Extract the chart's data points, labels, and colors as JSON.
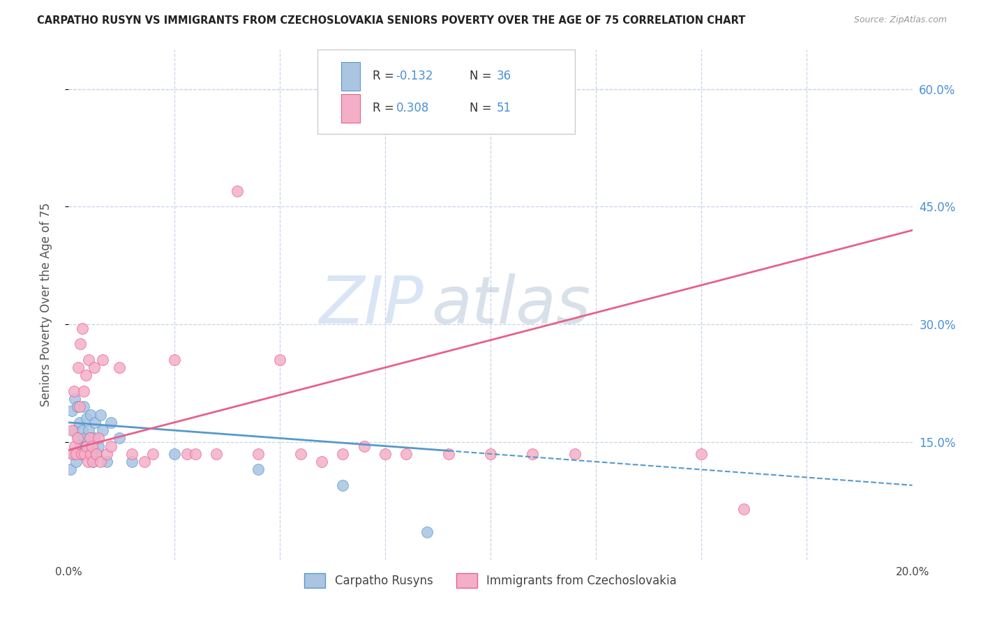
{
  "title": "CARPATHO RUSYN VS IMMIGRANTS FROM CZECHOSLOVAKIA SENIORS POVERTY OVER THE AGE OF 75 CORRELATION CHART",
  "source": "Source: ZipAtlas.com",
  "ylabel": "Seniors Poverty Over the Age of 75",
  "legend_label1": "Carpatho Rusyns",
  "legend_label2": "Immigrants from Czechoslovakia",
  "r1": "-0.132",
  "n1": "36",
  "r2": "0.308",
  "n2": "51",
  "color_blue": "#aac4e2",
  "color_pink": "#f4afc8",
  "color_blue_line": "#5599cc",
  "color_pink_line": "#e8608a",
  "color_text": "#4a90d9",
  "background_color": "#ffffff",
  "grid_color": "#c8d4e8",
  "xlim": [
    0.0,
    20.0
  ],
  "ylim": [
    0.0,
    65.0
  ],
  "yticks": [
    15.0,
    30.0,
    45.0,
    60.0
  ],
  "xticks": [
    0.0,
    20.0
  ],
  "blue_line_x": [
    0.0,
    20.0
  ],
  "blue_line_y": [
    17.5,
    9.5
  ],
  "blue_dash_start_x": 9.0,
  "pink_line_x": [
    0.0,
    20.0
  ],
  "pink_line_y": [
    14.0,
    42.0
  ],
  "blue_scatter_x": [
    0.05,
    0.08,
    0.1,
    0.12,
    0.15,
    0.18,
    0.2,
    0.22,
    0.25,
    0.28,
    0.3,
    0.32,
    0.35,
    0.38,
    0.4,
    0.42,
    0.45,
    0.48,
    0.5,
    0.52,
    0.55,
    0.58,
    0.6,
    0.62,
    0.65,
    0.7,
    0.75,
    0.8,
    0.9,
    1.0,
    1.2,
    1.5,
    2.5,
    4.5,
    6.5,
    8.5
  ],
  "blue_scatter_y": [
    11.5,
    19.0,
    13.5,
    16.5,
    20.5,
    12.5,
    19.5,
    15.5,
    17.5,
    14.5,
    13.5,
    16.5,
    19.5,
    15.5,
    14.5,
    18.0,
    13.5,
    16.5,
    15.5,
    18.5,
    14.5,
    12.5,
    15.5,
    17.5,
    13.5,
    14.5,
    18.5,
    16.5,
    12.5,
    17.5,
    15.5,
    12.5,
    13.5,
    11.5,
    9.5,
    3.5
  ],
  "pink_scatter_x": [
    0.08,
    0.1,
    0.12,
    0.15,
    0.18,
    0.2,
    0.22,
    0.25,
    0.28,
    0.3,
    0.32,
    0.35,
    0.38,
    0.4,
    0.42,
    0.45,
    0.48,
    0.5,
    0.52,
    0.55,
    0.58,
    0.6,
    0.65,
    0.7,
    0.75,
    0.8,
    0.9,
    1.0,
    1.2,
    1.5,
    1.8,
    2.0,
    2.5,
    2.8,
    3.0,
    3.5,
    4.0,
    4.5,
    5.0,
    5.5,
    6.0,
    6.5,
    7.0,
    7.5,
    8.0,
    9.0,
    10.0,
    11.0,
    12.0,
    15.0,
    16.0
  ],
  "pink_scatter_y": [
    16.5,
    13.5,
    21.5,
    14.5,
    13.5,
    15.5,
    24.5,
    19.5,
    27.5,
    13.5,
    29.5,
    21.5,
    13.5,
    23.5,
    14.5,
    12.5,
    25.5,
    15.5,
    13.5,
    14.5,
    12.5,
    24.5,
    13.5,
    15.5,
    12.5,
    25.5,
    13.5,
    14.5,
    24.5,
    13.5,
    12.5,
    13.5,
    25.5,
    13.5,
    13.5,
    13.5,
    47.0,
    13.5,
    25.5,
    13.5,
    12.5,
    13.5,
    14.5,
    13.5,
    13.5,
    13.5,
    13.5,
    13.5,
    13.5,
    13.5,
    6.5
  ],
  "watermark_zip_color": "#c0d4ee",
  "watermark_atlas_color": "#b8c8d8"
}
